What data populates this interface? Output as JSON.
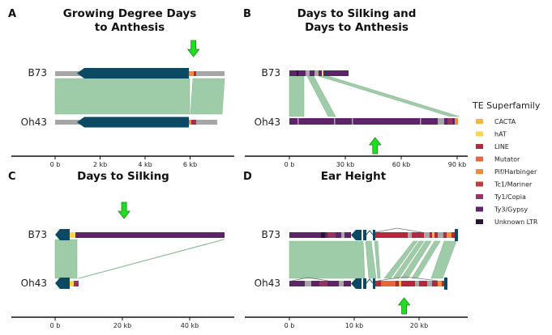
{
  "colors": {
    "gene": "#0b4a62",
    "flank": "#a6a6a6",
    "synteny": "#8fc49a",
    "arrow": "#22dd22",
    "axis": "#111111"
  },
  "legend": {
    "title": "TE Superfamily",
    "items": [
      {
        "label": "CACTA",
        "color": "#f7b733"
      },
      {
        "label": "hAT",
        "color": "#ffd54a"
      },
      {
        "label": "LINE",
        "color": "#b5273a"
      },
      {
        "label": "Mutator",
        "color": "#e8643a"
      },
      {
        "label": "Pif/Harbinger",
        "color": "#ef8c3e"
      },
      {
        "label": "Tc1/Mariner",
        "color": "#c43c3a"
      },
      {
        "label": "Ty1/Copia",
        "color": "#9b3163"
      },
      {
        "label": "Ty3/Gypsy",
        "color": "#5e2469"
      },
      {
        "label": "Unknown LTR",
        "color": "#2b1336"
      }
    ]
  },
  "panels": [
    {
      "id": "A",
      "label": "A",
      "title": [
        "Growing Degree Days",
        "to Anthesis"
      ],
      "genomes": [
        "B73",
        "Oh43"
      ],
      "axis": {
        "ticks": [
          "0 b",
          "2 kb",
          "4 kb",
          "6 kb"
        ],
        "tick_values": [
          0,
          2,
          4,
          6
        ],
        "min": -0.3,
        "max": 7.6
      },
      "arrow": {
        "direction": "down",
        "track": "B73",
        "kb": 6.15
      }
    },
    {
      "id": "B",
      "label": "B",
      "title": [
        "Days to Silking and",
        "Days to Anthesis"
      ],
      "genomes": [
        "B73",
        "Oh43"
      ],
      "axis": {
        "ticks": [
          "0 b",
          "30 kb",
          "60 kb",
          "90 kb"
        ],
        "tick_values": [
          0,
          30,
          60,
          90
        ],
        "min": -20,
        "max": 92
      },
      "arrow": {
        "direction": "up",
        "track": "Oh43",
        "kb": 46
      }
    },
    {
      "id": "C",
      "label": "C",
      "title": [
        "Days to Silking"
      ],
      "genomes": [
        "B73",
        "Oh43"
      ],
      "axis": {
        "ticks": [
          "0 b",
          "20 kb",
          "40 kb"
        ],
        "tick_values": [
          0,
          20,
          40
        ],
        "min": -8,
        "max": 51
      },
      "arrow": {
        "direction": "down",
        "track": "B73",
        "kb": 20.5
      }
    },
    {
      "id": "D",
      "label": "D",
      "title": [
        "Ear Height"
      ],
      "genomes": [
        "B73",
        "Oh43"
      ],
      "axis": {
        "ticks": [
          "0 b",
          "10 kb",
          "20 kb"
        ],
        "tick_values": [
          0,
          10,
          20
        ],
        "min": -8,
        "max": 26
      },
      "arrow": {
        "direction": "up",
        "track": "Oh43",
        "kb": 17.7
      }
    }
  ]
}
